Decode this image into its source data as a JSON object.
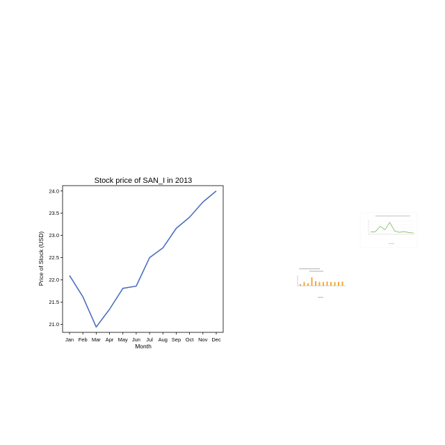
{
  "chart_data": [
    {
      "type": "line",
      "title": "Stock price of SAN_I in 2013",
      "xlabel": "Month",
      "ylabel": "Price of Stock (USD)",
      "categories": [
        "Jan",
        "Feb",
        "Mar",
        "Apr",
        "May",
        "Jun",
        "Jul",
        "Aug",
        "Sep",
        "Oct",
        "Nov",
        "Dec"
      ],
      "series": [
        {
          "values": [
            22.1,
            21.62,
            20.94,
            21.34,
            21.81,
            21.86,
            22.5,
            22.72,
            23.16,
            23.41,
            23.75,
            24.0
          ]
        }
      ],
      "ylim": [
        20.82,
        24.12
      ],
      "yticks": [
        21.0,
        21.5,
        22.0,
        22.5,
        23.0,
        23.5,
        24.0
      ],
      "ytick_labels": [
        "21.0",
        "21.5",
        "22.0",
        "22.5",
        "23.0",
        "23.5",
        "24.0"
      ],
      "grid": false,
      "line_color": "#4a6fbf"
    },
    {
      "type": "bar",
      "bars": [
        0.2,
        0.45,
        0.3,
        1.0,
        0.55,
        0.45,
        0.45,
        0.5,
        0.45,
        0.45,
        0.45,
        0.5
      ],
      "bar_color": "#f0a830"
    },
    {
      "type": "line",
      "values": [
        0.12,
        0.15,
        0.55,
        0.3,
        0.85,
        0.2,
        0.1,
        0.15,
        0.08,
        0.05
      ],
      "line_color": "#6fae4a"
    }
  ]
}
